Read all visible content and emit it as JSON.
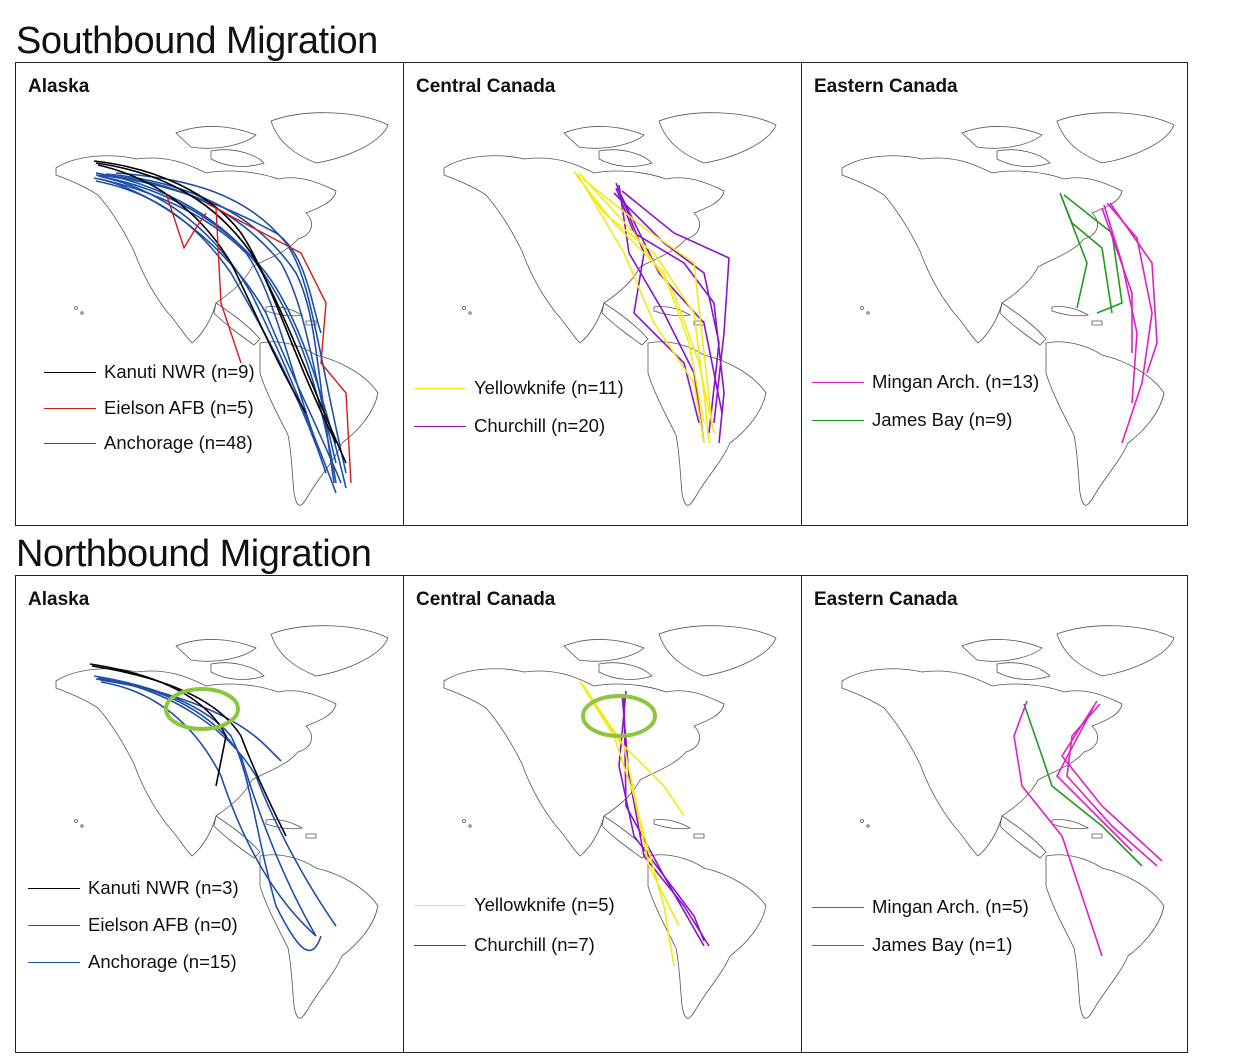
{
  "sections": [
    {
      "title": "Southbound Migration",
      "panels": [
        {
          "region": "Alaska",
          "legend": [
            {
              "label": "Kanuti NWR (n=9)",
              "color": "#000000"
            },
            {
              "label": "Eielson AFB (n=5)",
              "color": "#d11a1a"
            },
            {
              "label": "Anchorage (n=48)",
              "color": "#1f4fa8"
            }
          ]
        },
        {
          "region": "Central Canada",
          "legend": [
            {
              "label": "Yellowknife (n=11)",
              "color": "#f2ea14"
            },
            {
              "label": "Churchill (n=20)",
              "color": "#8a14c8"
            }
          ]
        },
        {
          "region": "Eastern Canada",
          "legend": [
            {
              "label": "Mingan Arch. (n=13)",
              "color": "#e01fc4"
            },
            {
              "label": "James Bay (n=9)",
              "color": "#1f9a1f"
            }
          ]
        }
      ]
    },
    {
      "title": "Northbound Migration",
      "panels": [
        {
          "region": "Alaska",
          "legend": [
            {
              "label": "Kanuti NWR (n=3)",
              "color": "#000000"
            },
            {
              "label": "Eielson AFB (n=0)",
              "color": "#d11a1a"
            },
            {
              "label": "Anchorage (n=15)",
              "color": "#1f4fa8"
            }
          ]
        },
        {
          "region": "Central Canada",
          "legend": [
            {
              "label": "Yellowknife (n=5)",
              "color": "#f2ea14"
            },
            {
              "label": "Churchill (n=7)",
              "color": "#8a14c8"
            }
          ]
        },
        {
          "region": "Eastern Canada",
          "legend": [
            {
              "label": "Mingan Arch. (n=5)",
              "color": "#e01fc4"
            },
            {
              "label": "James Bay (n=1)",
              "color": "#1f9a1f"
            }
          ]
        }
      ]
    }
  ],
  "highlight_color": "#8cc63f"
}
